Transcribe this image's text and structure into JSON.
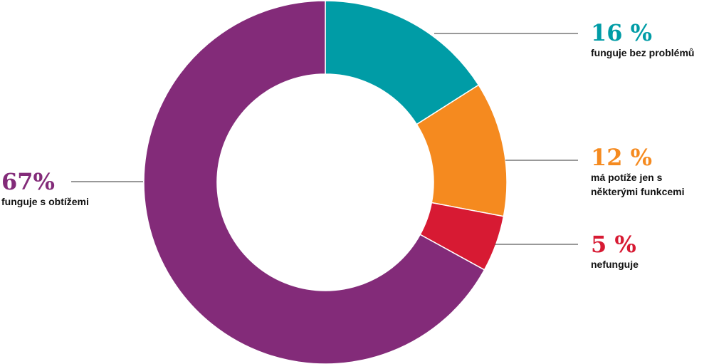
{
  "chart_data": {
    "type": "donut",
    "categories": [
      "funguje bez problémů",
      "má potíže jen s některými funkcemi",
      "nefunguje",
      "funguje s obtížemi"
    ],
    "values": [
      16,
      12,
      5,
      67
    ],
    "value_labels": [
      "16 %",
      "12 %",
      "5 %",
      "67%"
    ],
    "colors": [
      "#009ca6",
      "#f58a1f",
      "#d71a33",
      "#832b79"
    ]
  }
}
